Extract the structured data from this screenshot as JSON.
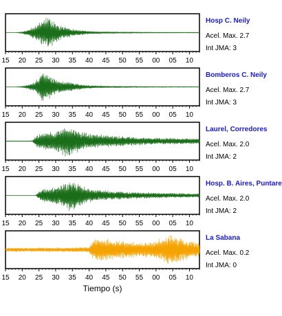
{
  "chart_data": [
    {
      "type": "line",
      "station": "Hosp C. Neily",
      "accel_label": "Acel. Max. 2.7",
      "intensity_label": "Int JMA: 3",
      "color": "#1a6e1a",
      "x_tick_labels": [
        "15",
        "20",
        "25",
        "30",
        "35",
        "40",
        "45",
        "50",
        "55",
        "00",
        "05",
        "10"
      ],
      "envelope_x": [
        15,
        18,
        20,
        22,
        24,
        26,
        27,
        28,
        29,
        30,
        31,
        32,
        34,
        36,
        38,
        40,
        45,
        50,
        60,
        70,
        74
      ],
      "envelope_amp": [
        0.0,
        0.0,
        0.06,
        0.25,
        0.45,
        0.75,
        0.9,
        1.0,
        0.85,
        0.65,
        0.5,
        0.4,
        0.3,
        0.22,
        0.15,
        0.1,
        0.06,
        0.04,
        0.025,
        0.02,
        0.02
      ]
    },
    {
      "type": "line",
      "station": "Bomberos C. Neily",
      "accel_label": "Acel. Max. 2.7",
      "intensity_label": "Int JMA: 3",
      "color": "#1a6e1a",
      "x_tick_labels": [
        "15",
        "20",
        "25",
        "30",
        "35",
        "40",
        "45",
        "50",
        "55",
        "00",
        "05",
        "10"
      ],
      "envelope_x": [
        15,
        18,
        20,
        22,
        24,
        25,
        26,
        27,
        28,
        30,
        32,
        34,
        36,
        38,
        40,
        45,
        50,
        60,
        70,
        74
      ],
      "envelope_amp": [
        0.0,
        0.0,
        0.04,
        0.15,
        0.35,
        0.6,
        1.0,
        0.95,
        0.75,
        0.45,
        0.35,
        0.3,
        0.22,
        0.15,
        0.1,
        0.06,
        0.04,
        0.025,
        0.02,
        0.02
      ]
    },
    {
      "type": "line",
      "station": "Laurel, Corredores",
      "accel_label": "Acel. Max. 2.0",
      "intensity_label": "Int JMA: 2",
      "color": "#1a6e1a",
      "x_tick_labels": [
        "15",
        "20",
        "25",
        "30",
        "35",
        "40",
        "45",
        "50",
        "55",
        "00",
        "05",
        "10"
      ],
      "envelope_x": [
        15,
        20,
        22,
        23,
        24,
        25,
        27,
        29,
        31,
        33,
        35,
        37,
        39,
        42,
        45,
        50,
        55,
        60,
        65,
        70,
        74
      ],
      "envelope_amp": [
        0.02,
        0.02,
        0.02,
        0.03,
        0.3,
        0.45,
        0.55,
        0.6,
        0.75,
        1.0,
        0.9,
        0.7,
        0.55,
        0.45,
        0.38,
        0.32,
        0.27,
        0.22,
        0.2,
        0.18,
        0.17
      ]
    },
    {
      "type": "line",
      "station": "Hosp. B. Aires, Puntarenas",
      "accel_label": "Acel. Max. 2.0",
      "intensity_label": "Int JMA: 2",
      "color": "#1a6e1a",
      "x_tick_labels": [
        "15",
        "20",
        "25",
        "30",
        "35",
        "40",
        "45",
        "50",
        "55",
        "00",
        "05",
        "10"
      ],
      "envelope_x": [
        15,
        20,
        24,
        25,
        26,
        28,
        30,
        32,
        34,
        35,
        36,
        38,
        40,
        42,
        45,
        50,
        55,
        60,
        65,
        70,
        74
      ],
      "envelope_amp": [
        0.0,
        0.0,
        0.0,
        0.25,
        0.4,
        0.5,
        0.55,
        0.7,
        0.95,
        1.0,
        0.8,
        0.6,
        0.45,
        0.38,
        0.32,
        0.25,
        0.2,
        0.17,
        0.15,
        0.13,
        0.12
      ]
    },
    {
      "type": "line",
      "station": "La Sabana",
      "accel_label": "Acel. Max. 0.2",
      "intensity_label": "Int JMA: 0",
      "color": "#f5a300",
      "x_tick_labels": [
        "15",
        "20",
        "25",
        "30",
        "35",
        "40",
        "45",
        "50",
        "55",
        "00",
        "05",
        "10"
      ],
      "xlabel": "Tiempo (s)",
      "envelope_x": [
        15,
        20,
        25,
        30,
        35,
        38,
        40,
        41,
        43,
        45,
        48,
        50,
        53,
        55,
        58,
        60,
        63,
        65,
        67,
        70,
        74
      ],
      "envelope_amp": [
        0.12,
        0.13,
        0.13,
        0.14,
        0.15,
        0.16,
        0.2,
        0.55,
        0.75,
        0.7,
        0.6,
        0.55,
        0.5,
        0.45,
        0.5,
        0.6,
        0.85,
        1.0,
        0.75,
        0.55,
        0.4
      ]
    }
  ]
}
